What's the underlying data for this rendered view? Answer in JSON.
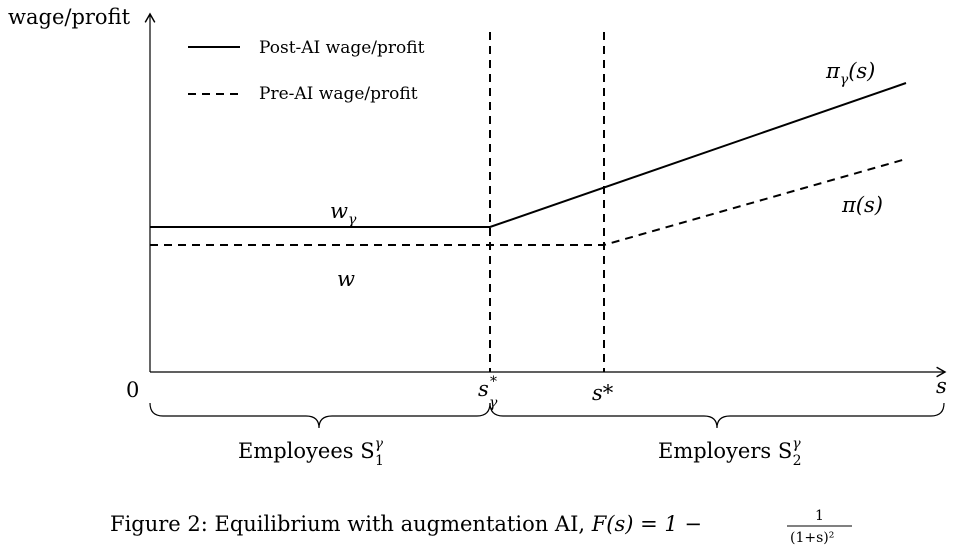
{
  "axes": {
    "y_label": "wage/profit",
    "x_label": "s",
    "origin_label": "0"
  },
  "legend": {
    "solid": "Post-AI wage/profit",
    "dashed": "Pre-AI wage/profit"
  },
  "curve_labels": {
    "pi_gamma": "π",
    "pi_gamma_sub": "γ",
    "pi_gamma_arg": "(s)",
    "pi": "π(s)",
    "w_gamma": "w",
    "w_gamma_sub": "γ",
    "w": "w"
  },
  "thresholds": {
    "s_gamma_star": "s",
    "s_gamma_star_sup": "*",
    "s_gamma_star_sub": "γ",
    "s_star": "s*"
  },
  "regions": {
    "employees": "Employees S",
    "employees_sup": "γ",
    "employees_sub": "1",
    "employers": "Employers S",
    "employers_sup": "γ",
    "employers_sub": "2"
  },
  "caption": {
    "text": "Figure 2: Equilibrium with augmentation AI, ",
    "formula_lhs": "F(s) = 1 − ",
    "frac_num": "1",
    "frac_den": "(1+s)²"
  }
}
